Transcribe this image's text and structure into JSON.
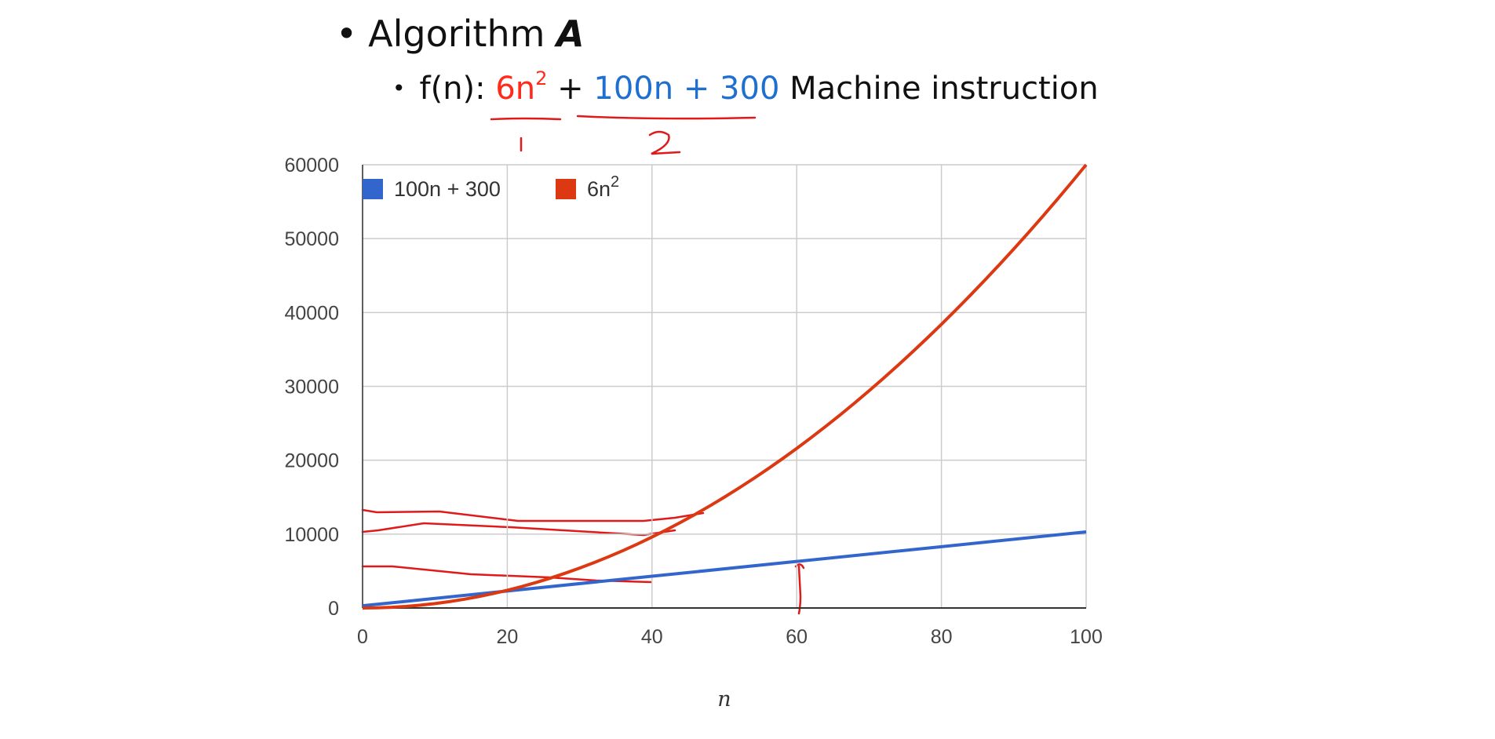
{
  "slide": {
    "bullet1": {
      "prefix": "Algorithm ",
      "var": "A"
    },
    "bullet2": {
      "prefix": "f(n): ",
      "term1": "6n",
      "term1_exp": "2",
      "plus": " + ",
      "term2": "100n + 300",
      "suffix": " Machine instruction"
    },
    "annotations": [
      "1",
      "2"
    ]
  },
  "chart_data": {
    "type": "line",
    "xlabel": "n",
    "ylabel": "",
    "xlim": [
      0,
      100
    ],
    "ylim": [
      0,
      60000
    ],
    "x_ticks": [
      "0",
      "20",
      "40",
      "60",
      "80",
      "100"
    ],
    "y_ticks": [
      "0",
      "10000",
      "20000",
      "30000",
      "40000",
      "50000",
      "60000"
    ],
    "grid": true,
    "legend_position": "top-left",
    "series": [
      {
        "name": "100n + 300",
        "color": "#3366cc",
        "x": [
          0,
          20,
          40,
          60,
          80,
          100
        ],
        "y": [
          300,
          2300,
          4300,
          6300,
          8300,
          10300
        ]
      },
      {
        "name": "6n",
        "name_exp": "2",
        "color": "#dc3912",
        "x": [
          0,
          10,
          20,
          30,
          40,
          50,
          60,
          70,
          80,
          90,
          100
        ],
        "y": [
          0,
          600,
          2400,
          5400,
          9600,
          15000,
          21600,
          29400,
          38400,
          48600,
          60000
        ]
      }
    ]
  }
}
